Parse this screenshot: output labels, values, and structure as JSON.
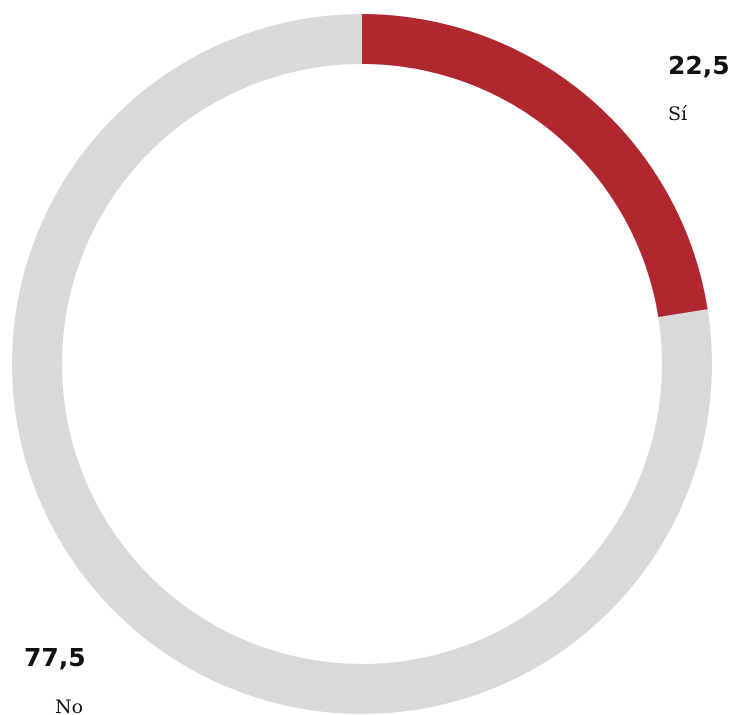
{
  "chart_data": {
    "type": "donut",
    "categories": [
      "Sí",
      "No"
    ],
    "values": [
      22.5,
      77.5
    ],
    "value_labels": [
      "22,5",
      "77,5"
    ],
    "colors": [
      "#b0272f",
      "#d9d9d9"
    ]
  }
}
